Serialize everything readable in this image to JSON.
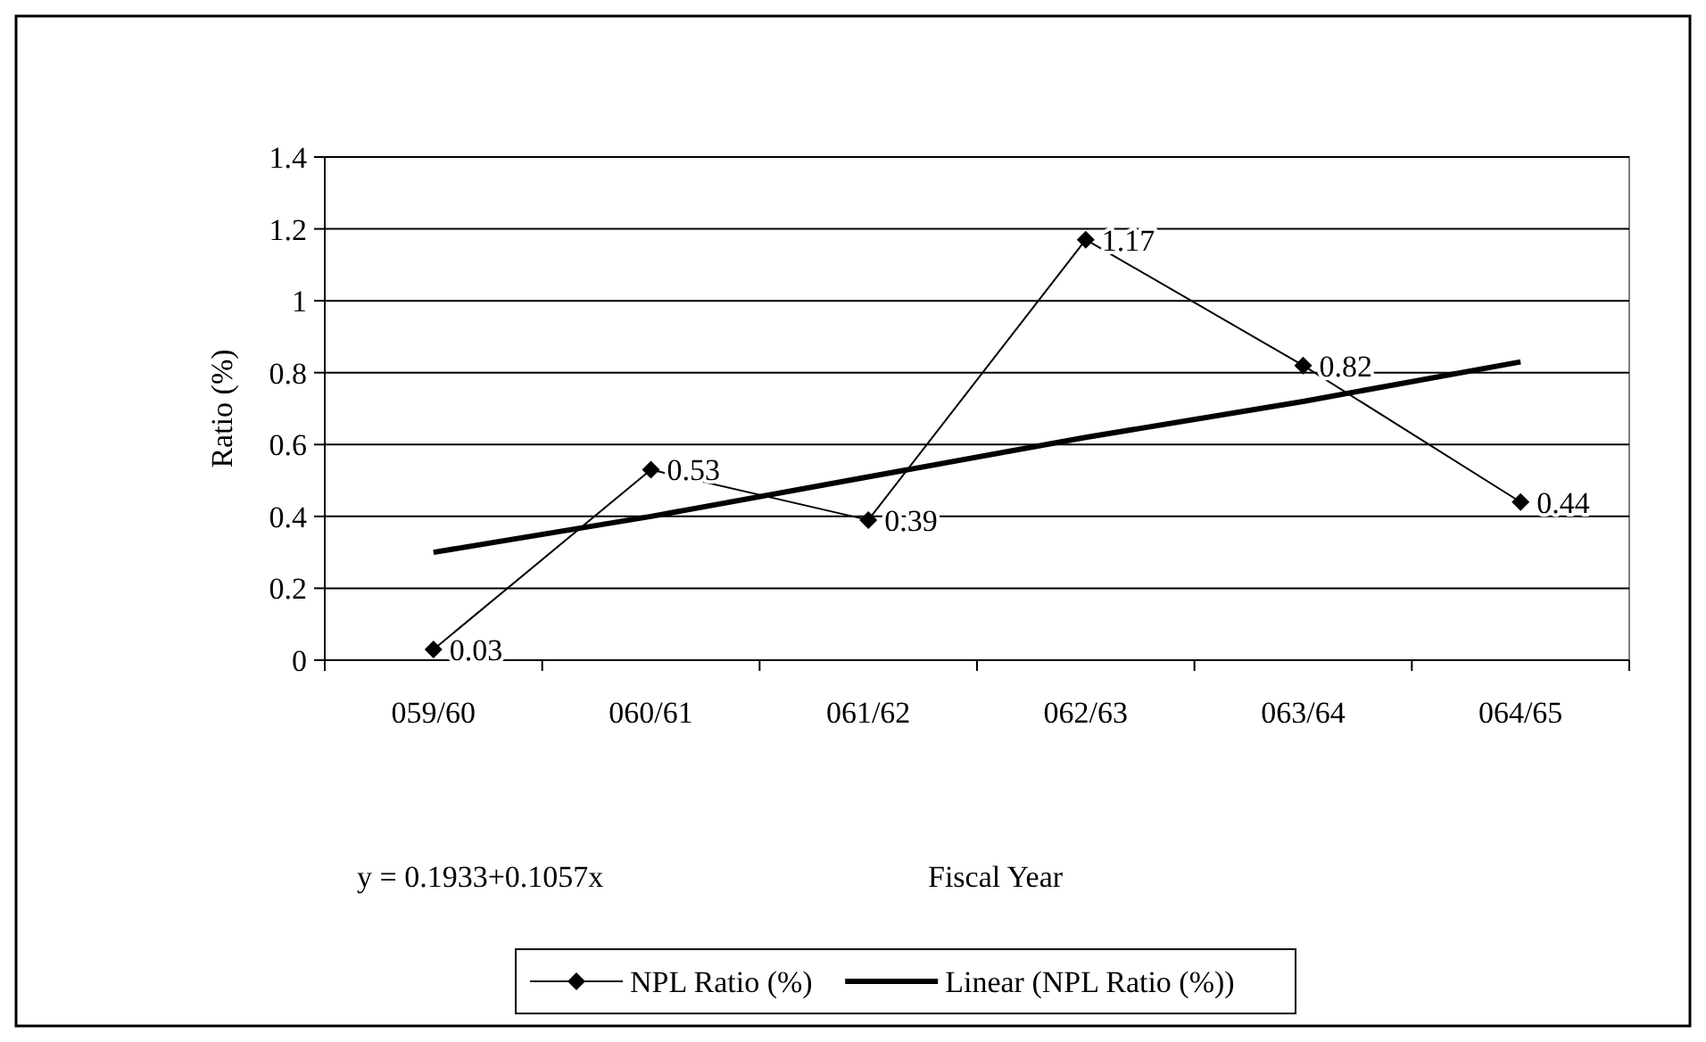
{
  "chart_data": {
    "type": "line",
    "xlabel": "Fiscal Year",
    "ylabel": "Ratio (%)",
    "categories": [
      "059/60",
      "060/61",
      "061/62",
      "062/63",
      "063/64",
      "064/65"
    ],
    "series": [
      {
        "name": "NPL Ratio (%)",
        "color": "#000000",
        "values": [
          0.03,
          0.53,
          0.39,
          1.17,
          0.82,
          0.44
        ],
        "value_labels": [
          "0.03",
          "0.53",
          "0.39",
          "1.17",
          "0.82",
          "0.44"
        ],
        "marker": "diamond"
      },
      {
        "name": "Linear (NPL Ratio (%))",
        "color": "#000000",
        "type": "line",
        "values": [
          0.3,
          0.4,
          0.51,
          0.62,
          0.72,
          0.83
        ],
        "marker": "none"
      }
    ],
    "ylim": [
      0,
      1.4
    ],
    "yticks": [
      0,
      0.2,
      0.4,
      0.6,
      0.8,
      1,
      1.2,
      1.4
    ],
    "grid": "y",
    "legend": "bottom",
    "annotations": [
      "y = 0.1933+0.1057x"
    ]
  }
}
